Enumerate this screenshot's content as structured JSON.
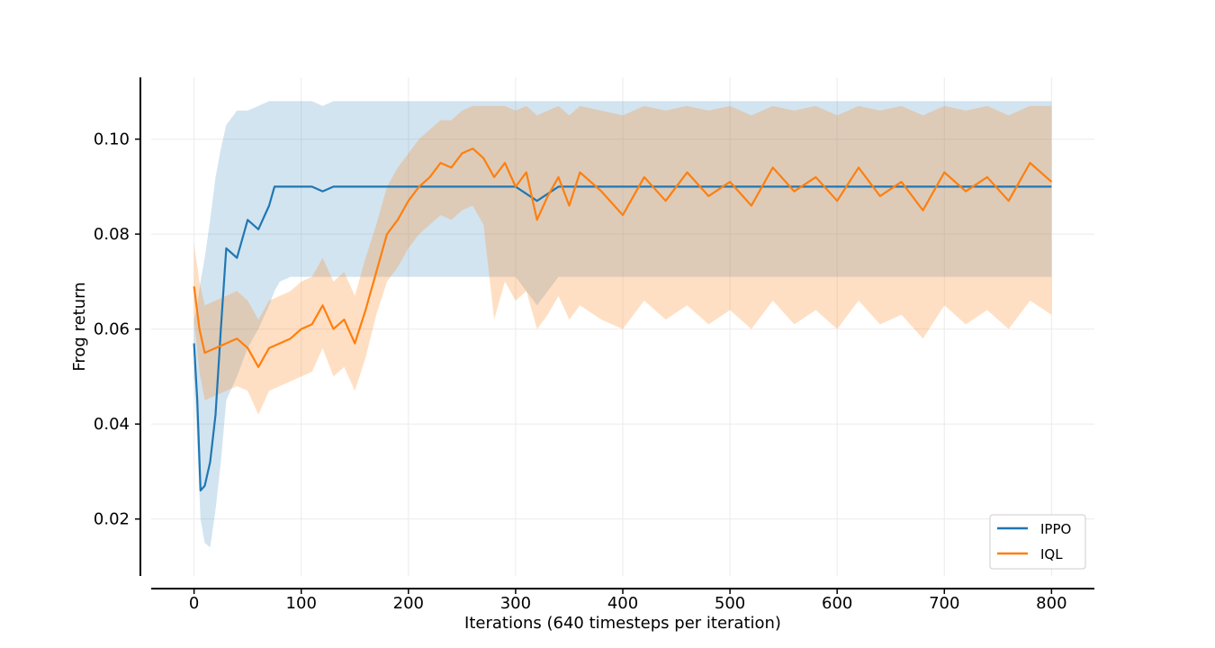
{
  "chart_data": {
    "type": "line",
    "title": "",
    "xlabel": "Iterations (640 timesteps per iteration)",
    "ylabel": "Frog return",
    "xlim": [
      -40,
      840
    ],
    "ylim": [
      0.008,
      0.113
    ],
    "xticks": [
      0,
      100,
      200,
      300,
      400,
      500,
      600,
      700,
      800
    ],
    "yticks": [
      0.02,
      0.04,
      0.06,
      0.08,
      0.1
    ],
    "xtick_labels": [
      "0",
      "100",
      "200",
      "300",
      "400",
      "500",
      "600",
      "700",
      "800"
    ],
    "ytick_labels": [
      "0.02",
      "0.04",
      "0.06",
      "0.08",
      "0.10"
    ],
    "grid": true,
    "legend_position": "bottom-right",
    "series": [
      {
        "name": "IPPO",
        "color": "#1f77b4",
        "x": [
          0,
          3,
          6,
          10,
          15,
          20,
          25,
          30,
          40,
          50,
          60,
          70,
          75,
          80,
          90,
          100,
          110,
          120,
          130,
          150,
          200,
          250,
          300,
          320,
          340,
          400,
          500,
          600,
          700,
          780,
          800
        ],
        "y": [
          0.057,
          0.045,
          0.026,
          0.027,
          0.032,
          0.042,
          0.06,
          0.077,
          0.075,
          0.083,
          0.081,
          0.086,
          0.09,
          0.09,
          0.09,
          0.09,
          0.09,
          0.089,
          0.09,
          0.09,
          0.09,
          0.09,
          0.09,
          0.087,
          0.09,
          0.09,
          0.09,
          0.09,
          0.09,
          0.09,
          0.09
        ],
        "lower": [
          0.05,
          0.036,
          0.02,
          0.015,
          0.014,
          0.022,
          0.032,
          0.045,
          0.05,
          0.056,
          0.06,
          0.065,
          0.068,
          0.07,
          0.071,
          0.071,
          0.071,
          0.071,
          0.071,
          0.071,
          0.071,
          0.071,
          0.071,
          0.065,
          0.071,
          0.071,
          0.071,
          0.071,
          0.071,
          0.071,
          0.071
        ],
        "upper": [
          0.062,
          0.065,
          0.07,
          0.075,
          0.083,
          0.092,
          0.098,
          0.103,
          0.106,
          0.106,
          0.107,
          0.108,
          0.108,
          0.108,
          0.108,
          0.108,
          0.108,
          0.107,
          0.108,
          0.108,
          0.108,
          0.108,
          0.108,
          0.108,
          0.108,
          0.108,
          0.108,
          0.108,
          0.108,
          0.108,
          0.108
        ]
      },
      {
        "name": "IQL",
        "color": "#ff7f0e",
        "x": [
          0,
          5,
          10,
          20,
          30,
          40,
          50,
          60,
          70,
          80,
          90,
          100,
          110,
          120,
          130,
          140,
          150,
          160,
          170,
          180,
          190,
          200,
          210,
          220,
          230,
          240,
          250,
          260,
          270,
          280,
          290,
          300,
          310,
          320,
          330,
          340,
          350,
          360,
          380,
          400,
          420,
          440,
          460,
          480,
          500,
          520,
          540,
          560,
          580,
          600,
          620,
          640,
          660,
          680,
          700,
          720,
          740,
          760,
          780,
          800
        ],
        "y": [
          0.069,
          0.06,
          0.055,
          0.056,
          0.057,
          0.058,
          0.056,
          0.052,
          0.056,
          0.057,
          0.058,
          0.06,
          0.061,
          0.065,
          0.06,
          0.062,
          0.057,
          0.064,
          0.072,
          0.08,
          0.083,
          0.087,
          0.09,
          0.092,
          0.095,
          0.094,
          0.097,
          0.098,
          0.096,
          0.092,
          0.095,
          0.09,
          0.093,
          0.083,
          0.088,
          0.092,
          0.086,
          0.093,
          0.089,
          0.084,
          0.092,
          0.087,
          0.093,
          0.088,
          0.091,
          0.086,
          0.094,
          0.089,
          0.092,
          0.087,
          0.094,
          0.088,
          0.091,
          0.085,
          0.093,
          0.089,
          0.092,
          0.087,
          0.095,
          0.091
        ],
        "lower": [
          0.062,
          0.051,
          0.045,
          0.046,
          0.047,
          0.048,
          0.047,
          0.042,
          0.047,
          0.048,
          0.049,
          0.05,
          0.051,
          0.056,
          0.05,
          0.052,
          0.047,
          0.054,
          0.063,
          0.07,
          0.073,
          0.077,
          0.08,
          0.082,
          0.084,
          0.083,
          0.085,
          0.086,
          0.082,
          0.062,
          0.07,
          0.066,
          0.068,
          0.06,
          0.063,
          0.067,
          0.062,
          0.065,
          0.062,
          0.06,
          0.066,
          0.062,
          0.065,
          0.061,
          0.064,
          0.06,
          0.066,
          0.061,
          0.064,
          0.06,
          0.066,
          0.061,
          0.063,
          0.058,
          0.065,
          0.061,
          0.064,
          0.06,
          0.066,
          0.063
        ],
        "upper": [
          0.078,
          0.07,
          0.065,
          0.066,
          0.067,
          0.068,
          0.066,
          0.062,
          0.066,
          0.067,
          0.068,
          0.07,
          0.071,
          0.075,
          0.07,
          0.072,
          0.067,
          0.075,
          0.082,
          0.09,
          0.094,
          0.097,
          0.1,
          0.102,
          0.104,
          0.104,
          0.106,
          0.107,
          0.107,
          0.107,
          0.107,
          0.106,
          0.107,
          0.105,
          0.106,
          0.107,
          0.105,
          0.107,
          0.106,
          0.105,
          0.107,
          0.106,
          0.107,
          0.106,
          0.107,
          0.105,
          0.107,
          0.106,
          0.107,
          0.105,
          0.107,
          0.106,
          0.107,
          0.105,
          0.107,
          0.106,
          0.107,
          0.105,
          0.107,
          0.107
        ]
      }
    ]
  }
}
